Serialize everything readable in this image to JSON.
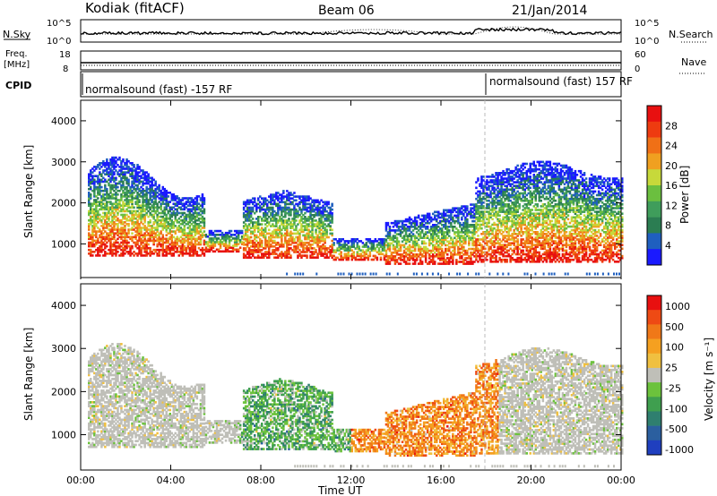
{
  "header": {
    "station": "Kodiak (fitACF)",
    "beam": "Beam 06",
    "date": "21/Jan/2014"
  },
  "top_panels": {
    "nsky": {
      "label": "N.Sky",
      "right_label": "N.Search",
      "top_tick": "10^5",
      "bottom_tick": "10^0",
      "right_top_tick": "10^5",
      "right_bottom_tick": "10^0"
    },
    "freq": {
      "label_line1": "Freq.",
      "label_line2": "[MHz]",
      "top_tick": "18",
      "bottom_tick": "8",
      "right_label": "Nave",
      "right_top_tick": "60",
      "right_bottom_tick": "0"
    },
    "cpid": {
      "label": "CPID",
      "segments": [
        {
          "text": "normalsound (fast) -157 RF",
          "start_hour": 0
        },
        {
          "text": "normalsound (fast) 157 RF",
          "start_hour": 18.0
        }
      ]
    }
  },
  "chart_data": [
    {
      "type": "heatmap",
      "name": "power",
      "ylabel": "Slant Range [km]",
      "ylim": [
        180,
        4500
      ],
      "yticks": [
        1000,
        2000,
        3000,
        4000
      ],
      "colorbar": {
        "label": "Power [dB]",
        "ticks": [
          "4",
          "8",
          "12",
          "16",
          "20",
          "24",
          "28"
        ],
        "colors": [
          "#1a1aff",
          "#1f5fbf",
          "#2b7d52",
          "#3f9d5b",
          "#6bbf3f",
          "#c7d93a",
          "#f0a020",
          "#f07016",
          "#ee3b10",
          "#e81010"
        ]
      }
    },
    {
      "type": "heatmap",
      "name": "velocity",
      "ylabel": "Slant Range [km]",
      "ylim": [
        180,
        4500
      ],
      "yticks": [
        1000,
        2000,
        3000,
        4000
      ],
      "colorbar": {
        "label": "Velocity [m s⁻¹]",
        "ticks": [
          "1000",
          "500",
          "100",
          "25",
          "-25",
          "-100",
          "-500",
          "-1000"
        ],
        "colors": [
          "#1f3fbf",
          "#2b5f9f",
          "#2f7f6f",
          "#3f9f4f",
          "#6cc23c",
          "#bfbfb8",
          "#f0c040",
          "#f5a020",
          "#f07818",
          "#ee4a14",
          "#e81010"
        ]
      }
    }
  ],
  "xaxis": {
    "label": "Time UT",
    "ticks": [
      "00:00",
      "04:00",
      "08:00",
      "12:00",
      "16:00",
      "20:00",
      "00:00"
    ],
    "range_hours": [
      0,
      24
    ]
  }
}
